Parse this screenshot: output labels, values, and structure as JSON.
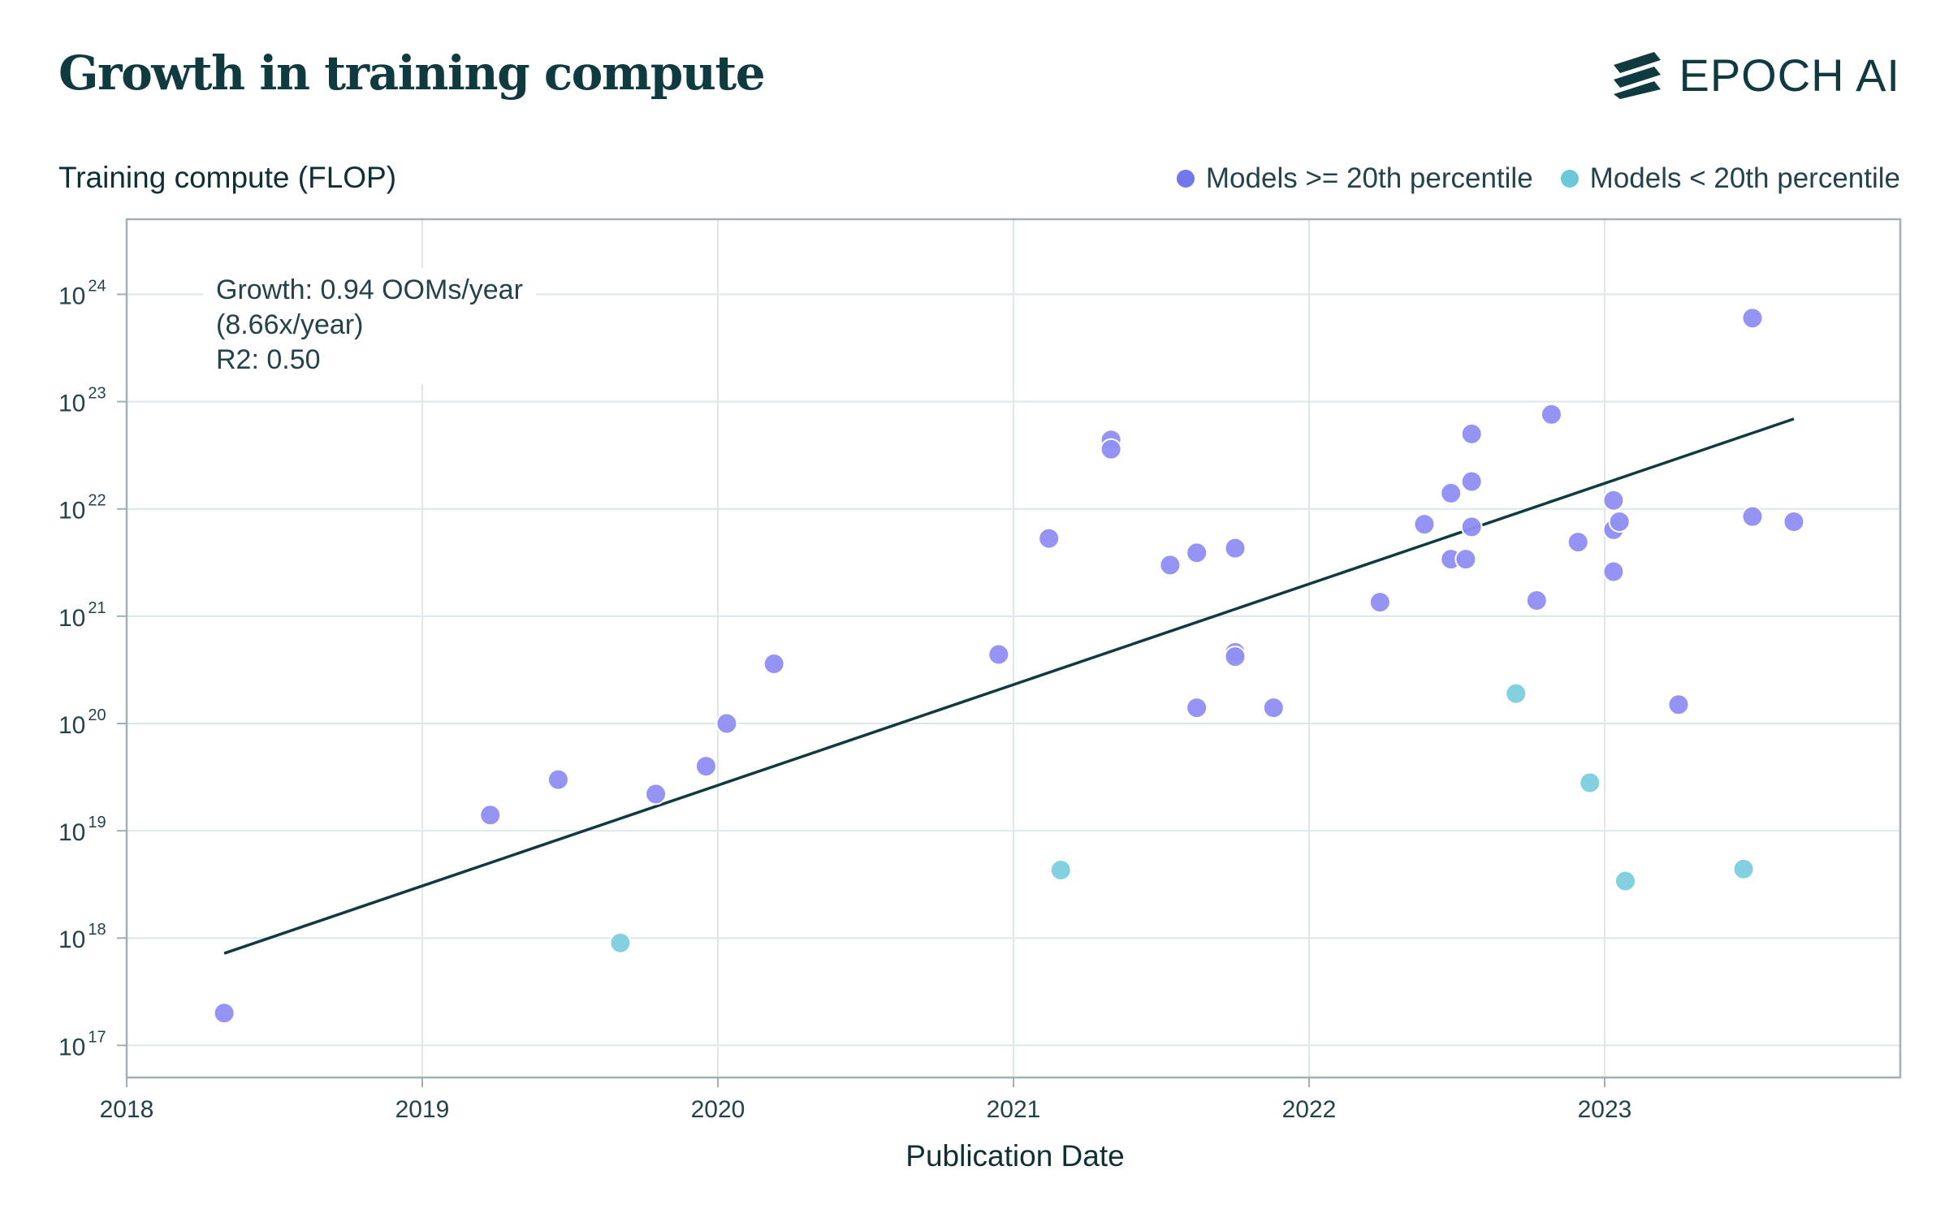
{
  "header": {
    "title": "Growth in training compute",
    "logo_text": "EPOCH AI"
  },
  "chart_data": {
    "type": "scatter",
    "title": "Growth in training compute",
    "ylabel": "Training compute (FLOP)",
    "xlabel": "Publication Date",
    "x_ticks": [
      "2018",
      "2019",
      "2020",
      "2021",
      "2022",
      "2023"
    ],
    "y_ticks": [
      {
        "base": "10",
        "exp": "17"
      },
      {
        "base": "10",
        "exp": "18"
      },
      {
        "base": "10",
        "exp": "19"
      },
      {
        "base": "10",
        "exp": "20"
      },
      {
        "base": "10",
        "exp": "21"
      },
      {
        "base": "10",
        "exp": "22"
      },
      {
        "base": "10",
        "exp": "23"
      },
      {
        "base": "10",
        "exp": "24"
      }
    ],
    "x_range": [
      2018.0,
      2024.0
    ],
    "y_log_range": [
      16.7,
      24.7
    ],
    "y_scale": "log",
    "grid": true,
    "legend_position": "top-right",
    "colors": {
      "high": "#8f8ef3",
      "high_dark": "#7377ee",
      "low": "#7ccfde",
      "fit_line": "#0f3a40",
      "grid": "#dde6e8",
      "axis": "#9fb1b6"
    },
    "series": [
      {
        "name": "Models >= 20th percentile",
        "color": "#8f8ef3",
        "points": [
          {
            "x": 2018.33,
            "y": 2e+17
          },
          {
            "x": 2019.23,
            "y": 1.4e+19
          },
          {
            "x": 2019.46,
            "y": 3e+19
          },
          {
            "x": 2019.79,
            "y": 2.2e+19
          },
          {
            "x": 2019.96,
            "y": 4e+19
          },
          {
            "x": 2020.03,
            "y": 1e+20
          },
          {
            "x": 2020.19,
            "y": 3.6e+20
          },
          {
            "x": 2020.95,
            "y": 4.4e+20
          },
          {
            "x": 2021.12,
            "y": 5.3e+21
          },
          {
            "x": 2021.33,
            "y": 4.4e+22
          },
          {
            "x": 2021.33,
            "y": 3.6e+22
          },
          {
            "x": 2021.53,
            "y": 3e+21
          },
          {
            "x": 2021.62,
            "y": 3.9e+21
          },
          {
            "x": 2021.62,
            "y": 1.4e+20
          },
          {
            "x": 2021.75,
            "y": 4.3e+21
          },
          {
            "x": 2021.75,
            "y": 4.6e+20
          },
          {
            "x": 2021.75,
            "y": 4.2e+20
          },
          {
            "x": 2021.88,
            "y": 1.4e+20
          },
          {
            "x": 2022.24,
            "y": 1.35e+21
          },
          {
            "x": 2022.39,
            "y": 7.2e+21
          },
          {
            "x": 2022.48,
            "y": 1.4e+22
          },
          {
            "x": 2022.48,
            "y": 3.4e+21
          },
          {
            "x": 2022.53,
            "y": 3.4e+21
          },
          {
            "x": 2022.55,
            "y": 5e+22
          },
          {
            "x": 2022.55,
            "y": 1.8e+22
          },
          {
            "x": 2022.55,
            "y": 6.8e+21
          },
          {
            "x": 2022.77,
            "y": 1.4e+21
          },
          {
            "x": 2022.82,
            "y": 7.6e+22
          },
          {
            "x": 2022.91,
            "y": 4.9e+21
          },
          {
            "x": 2023.03,
            "y": 1.2e+22
          },
          {
            "x": 2023.03,
            "y": 6.4e+21
          },
          {
            "x": 2023.03,
            "y": 2.6e+21
          },
          {
            "x": 2023.05,
            "y": 7.6e+21
          },
          {
            "x": 2023.25,
            "y": 1.5e+20
          },
          {
            "x": 2023.5,
            "y": 6e+23
          },
          {
            "x": 2023.5,
            "y": 8.5e+21
          },
          {
            "x": 2023.64,
            "y": 7.6e+21
          }
        ]
      },
      {
        "name": "Models < 20th percentile",
        "color": "#7ccfde",
        "points": [
          {
            "x": 2019.67,
            "y": 9e+17
          },
          {
            "x": 2021.16,
            "y": 4.3e+18
          },
          {
            "x": 2022.7,
            "y": 1.9e+20
          },
          {
            "x": 2022.95,
            "y": 2.8e+19
          },
          {
            "x": 2023.07,
            "y": 3.4e+18
          },
          {
            "x": 2023.47,
            "y": 4.4e+18
          }
        ]
      }
    ],
    "trend_line": {
      "x": [
        2018.33,
        2023.64
      ],
      "y": [
        7.2e+17,
        6.9e+22
      ]
    },
    "annotation": {
      "line1": "Growth: 0.94 OOMs/year",
      "line2": "(8.66x/year)",
      "line3": "R2: 0.50"
    }
  }
}
